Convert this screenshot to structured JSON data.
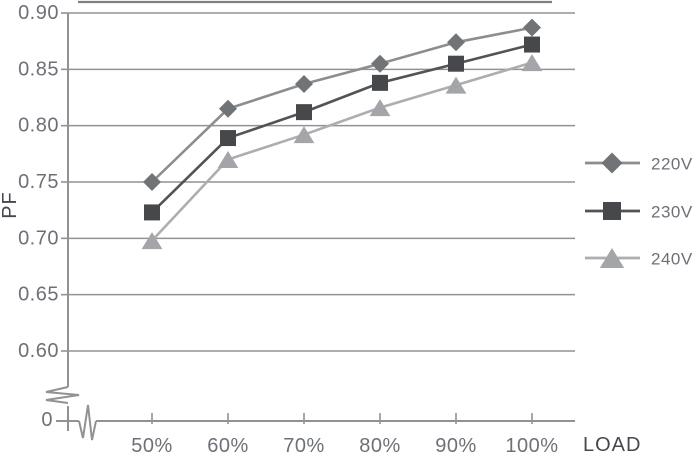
{
  "chart_data": {
    "type": "line",
    "title": "",
    "xlabel": "LOAD",
    "ylabel": "PF",
    "categories": [
      "50%",
      "60%",
      "70%",
      "80%",
      "90%",
      "100%"
    ],
    "series": [
      {
        "name": "220V",
        "marker": "diamond",
        "marker_color": "#717477",
        "line_color": "#8b8d90",
        "values": [
          0.75,
          0.815,
          0.837,
          0.855,
          0.874,
          0.887
        ]
      },
      {
        "name": "230V",
        "marker": "square",
        "marker_color": "#46484b",
        "line_color": "#515356",
        "values": [
          0.723,
          0.789,
          0.812,
          0.838,
          0.855,
          0.872
        ]
      },
      {
        "name": "240V",
        "marker": "triangle",
        "marker_color": "#a3a5a8",
        "line_color": "#acaeb1",
        "values": [
          0.698,
          0.77,
          0.792,
          0.816,
          0.836,
          0.856
        ]
      }
    ],
    "ytick_labels": [
      "0.90",
      "0.85",
      "0.80",
      "0.75",
      "0.70",
      "0.65",
      "0.60"
    ],
    "yticks": [
      0.9,
      0.85,
      0.8,
      0.75,
      0.7,
      0.65,
      0.6
    ],
    "origin_label": "0",
    "ylim": [
      0.6,
      0.9
    ],
    "axis_break": true,
    "grid": "horizontal",
    "legend_position": "right",
    "legend_labels": [
      "220V",
      "230V",
      "240V"
    ]
  },
  "colors": {
    "grid": "#909294",
    "axis": "#909294",
    "tick_text": "#6d7177",
    "axis_title_text": "#45484d",
    "legend_text": "#6d7177",
    "top_border": "#7d7f82",
    "background": "#ffffff"
  }
}
